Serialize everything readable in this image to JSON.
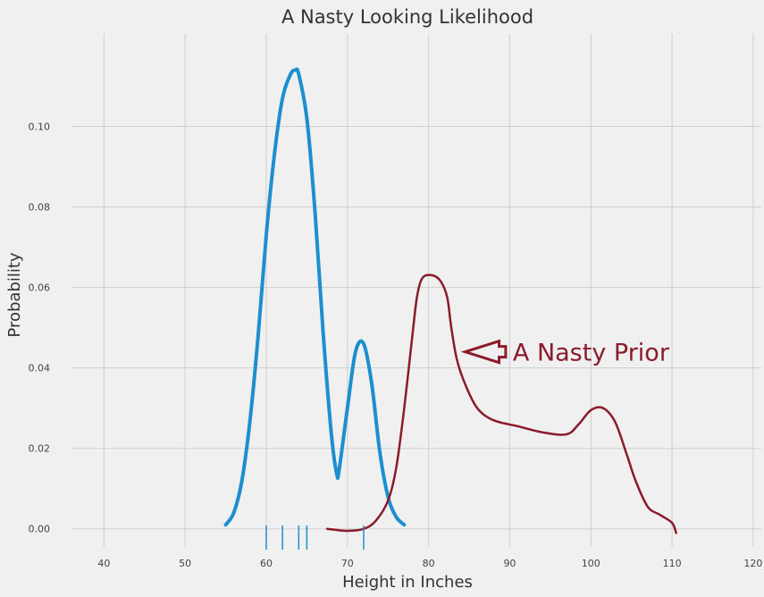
{
  "chart_data": {
    "type": "line",
    "title": "A Nasty Looking Likelihood",
    "xlabel": "Height in Inches",
    "ylabel": "Probability",
    "xlim": [
      36,
      121
    ],
    "ylim": [
      -0.0045,
      0.123
    ],
    "x_ticks": [
      40,
      50,
      60,
      70,
      80,
      90,
      100,
      110,
      120
    ],
    "x_tick_labels": [
      "40",
      "50",
      "60",
      "70",
      "80",
      "90",
      "100",
      "110",
      "120"
    ],
    "y_ticks": [
      0.0,
      0.02,
      0.04,
      0.06,
      0.08,
      0.1
    ],
    "y_tick_labels": [
      "0.00",
      "0.02",
      "0.04",
      "0.06",
      "0.08",
      "0.10"
    ],
    "grid": true,
    "series": [
      {
        "color": "#1b8fd0",
        "x": [
          55,
          56,
          57,
          58,
          59,
          60,
          61,
          62,
          63,
          63.6,
          64,
          65,
          66,
          67,
          68,
          68.7,
          69,
          70,
          71,
          72,
          73,
          74,
          75,
          76,
          77
        ],
        "y": [
          0.001,
          0.004,
          0.012,
          0.027,
          0.048,
          0.073,
          0.093,
          0.107,
          0.113,
          0.114,
          0.113,
          0.102,
          0.079,
          0.049,
          0.024,
          0.0135,
          0.015,
          0.03,
          0.044,
          0.046,
          0.036,
          0.019,
          0.008,
          0.003,
          0.001
        ]
      },
      {
        "color": "#8b1a2b",
        "x": [
          67.5,
          70,
          72,
          73.5,
          75,
          76,
          77,
          78,
          78.6,
          79.3,
          80.5,
          81.5,
          82.3,
          82.8,
          83.5,
          84.5,
          86,
          88,
          91,
          94,
          97,
          98.5,
          100,
          101.5,
          103,
          104.5,
          105.5,
          107,
          108.5,
          110,
          110.5
        ],
        "y": [
          0.0,
          -0.0005,
          0.0,
          0.002,
          0.007,
          0.015,
          0.03,
          0.048,
          0.058,
          0.0625,
          0.063,
          0.0615,
          0.0575,
          0.05,
          0.042,
          0.036,
          0.03,
          0.027,
          0.0255,
          0.024,
          0.0235,
          0.026,
          0.0295,
          0.03,
          0.0265,
          0.018,
          0.012,
          0.0055,
          0.0035,
          0.0015,
          -0.001
        ]
      }
    ],
    "rug": {
      "color": "#1b8fd0",
      "x": [
        60,
        62,
        64,
        65,
        72
      ]
    },
    "annotation": {
      "text": "A Nasty Prior",
      "color": "#8b1a2b",
      "arrow_tip": [
        84.5,
        0.044
      ],
      "arrow_tail": [
        89.5,
        0.044
      ]
    }
  }
}
